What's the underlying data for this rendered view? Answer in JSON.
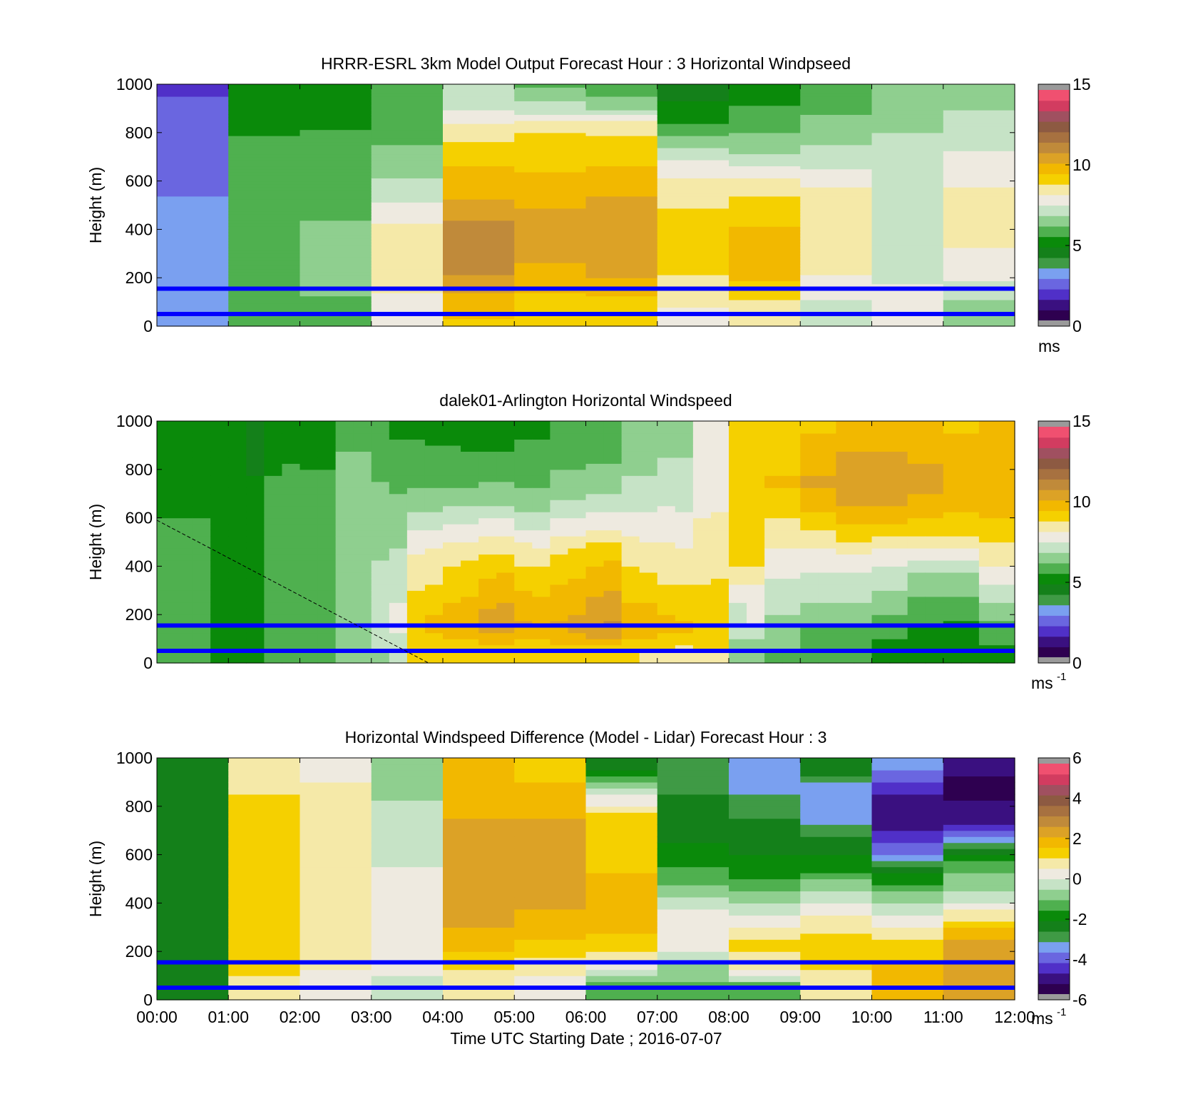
{
  "colorscale": {
    "speed": [
      "#2e0050",
      "#3a1080",
      "#5030c8",
      "#6a66e0",
      "#7aa0f0",
      "#3f9a45",
      "#14801a",
      "#0a8a0a",
      "#4fb04f",
      "#8fcf8f",
      "#c6e3c6",
      "#eeeae0",
      "#f5e9a8",
      "#f5d000",
      "#f2b800",
      "#dca226",
      "#c08a3a",
      "#a77140",
      "#8d5a42",
      "#a05060",
      "#d23c60",
      "#f05070"
    ],
    "diff": [
      "#2e0050",
      "#3a1080",
      "#5030c8",
      "#6a66e0",
      "#7aa0f0",
      "#3f9a45",
      "#14801a",
      "#0a8a0a",
      "#4fb04f",
      "#8fcf8f",
      "#c6e3c6",
      "#eeeae0",
      "#f5e9a8",
      "#f5d000",
      "#f2b800",
      "#dca226",
      "#c08a3a",
      "#a77140",
      "#8d5a42",
      "#a05060",
      "#d23c60",
      "#f05070"
    ],
    "out_of_range": "#9a9a9a",
    "marker_line": "#0000ff"
  },
  "xlabel": "Time UTC  Starting Date ; 2016-07-07",
  "x_tick_labels": [
    "00:00",
    "01:00",
    "02:00",
    "03:00",
    "04:00",
    "05:00",
    "06:00",
    "07:00",
    "08:00",
    "09:00",
    "10:00",
    "11:00",
    "12:00"
  ],
  "y_tick_labels": [
    "0",
    "200",
    "400",
    "600",
    "800",
    "1000"
  ],
  "panels": [
    {
      "title": "HRRR-ESRL 3km Model Output   Forecast Hour : 3 Horizontal Windpseed",
      "ylabel": "Height (m)",
      "cbar_ticks": [
        "0",
        "5",
        "10",
        "15"
      ],
      "cbar_unit": "ms",
      "cbar_unit_sup": ""
    },
    {
      "title": "dalek01-Arlington  Horizontal Windspeed",
      "ylabel": "Height (m)",
      "cbar_ticks": [
        "0",
        "5",
        "10",
        "15"
      ],
      "cbar_unit": "ms",
      "cbar_unit_sup": "-1"
    },
    {
      "title": "Horizontal Windspeed Difference (Model - Lidar) Forecast Hour : 3",
      "ylabel": "Height (m)",
      "cbar_ticks": [
        "-6",
        "-4",
        "-2",
        "0",
        "2",
        "4",
        "6"
      ],
      "cbar_unit": "ms",
      "cbar_unit_sup": "-1"
    }
  ],
  "chart_data": [
    {
      "type": "heatmap",
      "title": "HRRR-ESRL 3km Model Output   Forecast Hour : 3 Horizontal Windpseed",
      "xlabel": "",
      "ylabel": "Height (m)",
      "x_range": [
        "00:00",
        "12:00"
      ],
      "ylim": [
        0,
        1000
      ],
      "colorbar": {
        "range": [
          0,
          15
        ],
        "ticks": [
          0,
          5,
          10,
          15
        ],
        "unit": "ms"
      },
      "x_bins": [
        "00:00",
        "01:00",
        "02:00",
        "03:00",
        "04:00",
        "05:00",
        "06:00",
        "07:00",
        "08:00",
        "09:00",
        "10:00",
        "11:00"
      ],
      "height_bins": [
        25,
        100,
        150,
        200,
        250,
        300,
        350,
        400,
        450,
        500,
        550,
        600,
        650,
        700,
        750,
        800,
        850,
        900,
        1000
      ],
      "values": [
        [
          3.0,
          3.0,
          3.0,
          3.0,
          3.0,
          3.0,
          3.0,
          3.0,
          2.9,
          2.8,
          2.7,
          2.7,
          2.6,
          2.5,
          2.4,
          2.3,
          2.2,
          2.1,
          2.0
        ],
        [
          5.5,
          5.5,
          5.8,
          5.8,
          5.8,
          5.8,
          5.8,
          5.8,
          5.8,
          5.8,
          5.8,
          5.8,
          5.8,
          5.7,
          5.6,
          5.4,
          5.3,
          5.2,
          5.0
        ],
        [
          6.0,
          6.0,
          6.3,
          6.4,
          6.4,
          6.3,
          6.3,
          6.2,
          6.1,
          6.1,
          6.0,
          6.0,
          5.9,
          5.7,
          5.6,
          5.5,
          5.3,
          5.1,
          5.0
        ],
        [
          7.5,
          7.8,
          8.3,
          8.4,
          8.5,
          8.5,
          8.5,
          8.3,
          8.0,
          7.6,
          7.1,
          6.9,
          6.6,
          6.4,
          6.1,
          6.0,
          5.8,
          5.6,
          5.5
        ],
        [
          9.5,
          9.8,
          10.3,
          10.8,
          11.2,
          11.4,
          11.5,
          11.2,
          10.8,
          10.4,
          10.0,
          9.8,
          9.6,
          9.3,
          9.0,
          8.6,
          8.0,
          7.5,
          7.0
        ],
        [
          9.0,
          9.2,
          9.6,
          10.0,
          10.2,
          10.3,
          10.4,
          10.4,
          10.3,
          10.2,
          10.0,
          9.8,
          9.5,
          9.3,
          9.1,
          8.9,
          8.3,
          7.1,
          6.0
        ],
        [
          9.0,
          9.3,
          9.8,
          10.2,
          10.5,
          10.7,
          10.8,
          10.7,
          10.6,
          10.4,
          10.2,
          9.9,
          9.6,
          9.4,
          9.2,
          8.7,
          8.2,
          6.6,
          5.6
        ],
        [
          8.0,
          8.3,
          8.6,
          8.8,
          9.0,
          9.2,
          9.3,
          9.2,
          9.0,
          8.8,
          8.6,
          8.3,
          7.9,
          7.3,
          6.7,
          6.0,
          5.3,
          4.9,
          4.5
        ],
        [
          8.5,
          8.8,
          9.2,
          9.6,
          9.7,
          9.8,
          9.8,
          9.6,
          9.4,
          9.2,
          8.8,
          8.3,
          7.6,
          7.0,
          6.5,
          6.1,
          5.8,
          5.5,
          5.0
        ],
        [
          7.0,
          7.4,
          7.8,
          8.1,
          8.4,
          8.5,
          8.6,
          8.6,
          8.5,
          8.4,
          8.3,
          8.0,
          7.5,
          7.0,
          6.8,
          6.6,
          6.3,
          6.0,
          5.9
        ],
        [
          7.5,
          7.6,
          7.6,
          7.4,
          7.3,
          7.2,
          7.1,
          7.1,
          7.2,
          7.2,
          7.3,
          7.3,
          7.3,
          7.2,
          7.0,
          6.8,
          6.6,
          6.4,
          6.2
        ],
        [
          6.5,
          6.8,
          7.3,
          7.6,
          7.9,
          8.1,
          8.3,
          8.4,
          8.4,
          8.4,
          8.3,
          8.1,
          7.8,
          7.6,
          7.4,
          7.2,
          7.0,
          6.8,
          6.5
        ]
      ],
      "reference_lines_m": [
        50,
        155
      ]
    },
    {
      "type": "heatmap",
      "title": "dalek01-Arlington  Horizontal Windspeed",
      "xlabel": "",
      "ylabel": "Height (m)",
      "x_range": [
        "00:00",
        "12:00"
      ],
      "ylim": [
        0,
        1000
      ],
      "colorbar": {
        "range": [
          0,
          15
        ],
        "ticks": [
          0,
          5,
          10,
          15
        ],
        "unit": "ms-1"
      },
      "x_bins": [
        "00:00",
        "00:15",
        "00:30",
        "00:45",
        "01:00",
        "01:15",
        "01:30",
        "01:45",
        "02:00",
        "02:15",
        "02:30",
        "02:45",
        "03:00",
        "03:15",
        "03:30",
        "03:45",
        "04:00",
        "04:15",
        "04:30",
        "04:45",
        "05:00",
        "05:15",
        "05:30",
        "05:45",
        "06:00",
        "06:15",
        "06:30",
        "06:45",
        "07:00",
        "07:15",
        "07:30",
        "07:45",
        "08:00",
        "08:15",
        "08:30",
        "08:45",
        "09:00",
        "09:15",
        "09:30",
        "09:45",
        "10:00",
        "10:15",
        "10:30",
        "10:45",
        "11:00",
        "11:15",
        "11:30",
        "11:45"
      ],
      "height_levels": [
        50,
        150,
        250,
        350,
        450,
        550,
        650,
        750,
        850,
        950
      ],
      "values": [
        [
          5.5,
          5.6,
          5.6,
          5.6,
          5.5,
          5.5,
          5.4,
          5.4,
          5.4,
          5.3
        ],
        [
          5.5,
          5.6,
          5.6,
          5.6,
          5.5,
          5.5,
          5.4,
          5.4,
          5.4,
          5.3
        ],
        [
          5.6,
          5.6,
          5.6,
          5.6,
          5.6,
          5.5,
          5.4,
          5.4,
          5.3,
          5.3
        ],
        [
          5.3,
          5.3,
          5.3,
          5.3,
          5.3,
          5.2,
          5.1,
          5.1,
          5.0,
          5.0
        ],
        [
          5.3,
          5.3,
          5.3,
          5.3,
          5.3,
          5.2,
          5.2,
          5.0,
          4.9,
          4.8
        ],
        [
          5.0,
          5.0,
          5.0,
          5.0,
          4.9,
          4.9,
          4.8,
          4.8,
          4.7,
          4.7
        ],
        [
          5.8,
          5.8,
          5.8,
          5.8,
          5.8,
          5.7,
          5.6,
          5.5,
          5.3,
          5.0
        ],
        [
          5.8,
          5.8,
          5.9,
          5.9,
          5.9,
          5.8,
          5.7,
          5.6,
          5.4,
          5.0
        ],
        [
          5.9,
          5.9,
          6.0,
          6.0,
          6.0,
          5.9,
          5.8,
          5.6,
          5.3,
          5.0
        ],
        [
          6.0,
          6.0,
          6.1,
          6.1,
          6.1,
          6.0,
          5.8,
          5.6,
          5.3,
          5.0
        ],
        [
          6.6,
          6.6,
          6.6,
          6.6,
          6.6,
          6.6,
          6.5,
          6.4,
          6.2,
          5.8
        ],
        [
          6.6,
          6.6,
          6.7,
          6.7,
          6.7,
          6.6,
          6.5,
          6.4,
          6.2,
          5.8
        ],
        [
          6.8,
          7.0,
          7.0,
          6.9,
          6.8,
          6.7,
          6.5,
          6.1,
          5.7,
          5.5
        ],
        [
          7.0,
          7.7,
          7.5,
          7.2,
          6.9,
          6.6,
          6.3,
          6.0,
          5.6,
          5.4
        ],
        [
          9.0,
          9.5,
          9.1,
          8.6,
          8.2,
          7.5,
          6.5,
          6.0,
          5.6,
          5.4
        ],
        [
          9.0,
          9.8,
          9.3,
          8.7,
          8.3,
          7.6,
          6.6,
          6.0,
          5.6,
          5.3
        ],
        [
          9.1,
          10.0,
          9.5,
          9.1,
          8.7,
          7.8,
          6.8,
          6.0,
          5.6,
          5.3
        ],
        [
          9.1,
          10.1,
          9.6,
          9.2,
          8.7,
          7.8,
          6.8,
          6.0,
          5.5,
          5.2
        ],
        [
          9.2,
          10.6,
          10.1,
          9.6,
          9.0,
          7.9,
          6.9,
          6.1,
          5.5,
          5.2
        ],
        [
          9.2,
          10.7,
          10.2,
          9.7,
          9.0,
          7.9,
          6.9,
          6.1,
          5.5,
          5.2
        ],
        [
          9.0,
          10.3,
          9.8,
          9.2,
          8.6,
          7.6,
          6.7,
          6.0,
          5.6,
          5.4
        ],
        [
          9.0,
          10.2,
          9.7,
          9.2,
          8.5,
          7.5,
          6.6,
          6.0,
          5.6,
          5.4
        ],
        [
          9.1,
          10.3,
          9.8,
          9.4,
          8.9,
          8.0,
          7.0,
          6.3,
          5.9,
          5.7
        ],
        [
          9.2,
          10.5,
          10.0,
          9.5,
          9.0,
          8.0,
          7.0,
          6.3,
          5.9,
          5.7
        ],
        [
          9.3,
          10.9,
          10.4,
          9.9,
          9.3,
          8.3,
          7.3,
          6.5,
          6.0,
          5.8
        ],
        [
          9.3,
          11.0,
          10.5,
          10.0,
          9.3,
          8.3,
          7.3,
          6.5,
          6.0,
          5.8
        ],
        [
          8.9,
          10.1,
          9.6,
          9.1,
          8.6,
          8.0,
          7.4,
          6.9,
          6.5,
          6.3
        ],
        [
          8.8,
          10.0,
          9.5,
          9.0,
          8.5,
          7.9,
          7.4,
          6.9,
          6.5,
          6.3
        ],
        [
          8.8,
          9.8,
          9.3,
          8.8,
          8.4,
          7.9,
          7.5,
          7.1,
          6.8,
          6.6
        ],
        [
          8.7,
          9.7,
          9.2,
          8.7,
          8.3,
          7.8,
          7.4,
          7.1,
          6.8,
          6.6
        ],
        [
          8.8,
          9.5,
          9.1,
          8.8,
          8.6,
          8.3,
          8.0,
          7.8,
          7.6,
          7.5
        ],
        [
          8.8,
          9.6,
          9.1,
          8.9,
          8.6,
          8.4,
          8.1,
          7.8,
          7.6,
          7.5
        ],
        [
          6.4,
          7.4,
          7.5,
          8.5,
          9.1,
          9.1,
          9.0,
          9.0,
          9.0,
          9.0
        ],
        [
          6.4,
          7.5,
          7.5,
          8.5,
          9.1,
          9.1,
          9.1,
          9.1,
          9.0,
          9.0
        ],
        [
          6.1,
          6.6,
          7.1,
          7.5,
          8.1,
          8.6,
          9.3,
          9.6,
          9.4,
          9.0
        ],
        [
          6.1,
          6.6,
          7.1,
          7.5,
          8.1,
          8.6,
          9.3,
          9.6,
          9.4,
          9.0
        ],
        [
          5.5,
          6.1,
          6.8,
          7.2,
          8.0,
          8.9,
          9.9,
          10.3,
          10.0,
          9.5
        ],
        [
          5.5,
          6.1,
          6.8,
          7.2,
          8.0,
          8.9,
          9.9,
          10.3,
          10.0,
          9.5
        ],
        [
          5.5,
          6.1,
          6.9,
          7.3,
          8.3,
          9.3,
          10.3,
          10.7,
          10.3,
          9.8
        ],
        [
          5.5,
          6.1,
          6.9,
          7.3,
          8.3,
          9.3,
          10.3,
          10.7,
          10.3,
          9.8
        ],
        [
          5.2,
          5.8,
          6.6,
          7.0,
          8.0,
          9.2,
          10.2,
          10.6,
          10.3,
          9.8
        ],
        [
          5.2,
          5.8,
          6.6,
          7.0,
          8.0,
          9.2,
          10.2,
          10.6,
          10.3,
          9.8
        ],
        [
          5.0,
          5.4,
          6.0,
          6.6,
          8.0,
          9.1,
          10.0,
          10.4,
          10.2,
          9.7
        ],
        [
          5.0,
          5.4,
          6.0,
          6.6,
          8.0,
          9.1,
          10.0,
          10.4,
          10.2,
          9.7
        ],
        [
          4.9,
          5.3,
          5.9,
          6.6,
          8.0,
          9.0,
          9.8,
          10.1,
          9.9,
          9.5
        ],
        [
          4.9,
          5.3,
          5.9,
          6.6,
          8.0,
          9.0,
          9.8,
          10.1,
          9.9,
          9.5
        ],
        [
          5.2,
          6.0,
          6.9,
          7.6,
          8.6,
          9.3,
          9.9,
          10.2,
          10.0,
          9.6
        ],
        [
          5.2,
          6.0,
          6.9,
          7.6,
          8.6,
          9.3,
          9.9,
          10.2,
          10.0,
          9.6
        ]
      ],
      "reference_lines_m": [
        50,
        155
      ],
      "dashed_line": {
        "x": [
          "00:00",
          "03:48"
        ],
        "y": [
          590,
          0
        ]
      }
    },
    {
      "type": "heatmap",
      "title": "Horizontal Windspeed Difference (Model - Lidar) Forecast Hour : 3",
      "xlabel": "Time UTC  Starting Date ; 2016-07-07",
      "ylabel": "Height (m)",
      "x_range": [
        "00:00",
        "12:00"
      ],
      "ylim": [
        0,
        1000
      ],
      "colorbar": {
        "range": [
          -6,
          6
        ],
        "ticks": [
          -6,
          -4,
          -2,
          0,
          2,
          4,
          6
        ],
        "unit": "ms-1"
      },
      "x_bins": [
        "00:00",
        "01:00",
        "02:00",
        "03:00",
        "04:00",
        "05:00",
        "06:00",
        "07:00",
        "08:00",
        "09:00",
        "10:00",
        "11:00"
      ],
      "height_levels": [
        50,
        150,
        250,
        350,
        450,
        550,
        650,
        750,
        850,
        950
      ],
      "values": [
        [
          -2.4,
          -2.4,
          -2.5,
          -2.5,
          -2.5,
          -2.4,
          -2.5,
          -2.5,
          -2.6,
          -2.4
        ],
        [
          1.0,
          1.2,
          1.3,
          1.3,
          1.3,
          1.3,
          1.2,
          1.2,
          1.1,
          1.0
        ],
        [
          0.4,
          0.6,
          0.6,
          0.8,
          0.8,
          0.9,
          0.9,
          0.8,
          0.6,
          0.5
        ],
        [
          -0.2,
          0.2,
          0.4,
          0.4,
          0.2,
          0.0,
          -0.2,
          -0.4,
          -0.6,
          -0.6
        ],
        [
          0.6,
          1.2,
          2.0,
          2.4,
          2.6,
          2.6,
          2.4,
          2.2,
          2.0,
          2.0
        ],
        [
          0.3,
          0.9,
          1.6,
          2.1,
          2.4,
          2.6,
          2.6,
          2.2,
          1.8,
          1.5
        ],
        [
          -1.6,
          0.4,
          1.6,
          1.8,
          1.8,
          1.6,
          1.5,
          1.4,
          0.0,
          -2.2
        ],
        [
          -1.2,
          -0.5,
          0.4,
          0.2,
          -0.8,
          -1.6,
          -2.2,
          -2.4,
          -2.7,
          -3.0
        ],
        [
          -1.4,
          1.0,
          1.2,
          0.0,
          -1.2,
          -1.9,
          -2.4,
          -2.7,
          -3.2,
          -3.8
        ],
        [
          0.8,
          1.2,
          1.2,
          0.6,
          -0.6,
          -1.8,
          -2.5,
          -3.6,
          -3.8,
          -2.4
        ],
        [
          2.0,
          1.6,
          1.2,
          0.0,
          -1.2,
          -2.6,
          -4.6,
          -5.4,
          -5.0,
          -3.8
        ],
        [
          2.2,
          2.5,
          2.2,
          0.8,
          -0.6,
          -1.2,
          -3.0,
          -5.2,
          -5.6,
          -5.4
        ]
      ],
      "reference_lines_m": [
        50,
        155
      ]
    }
  ]
}
